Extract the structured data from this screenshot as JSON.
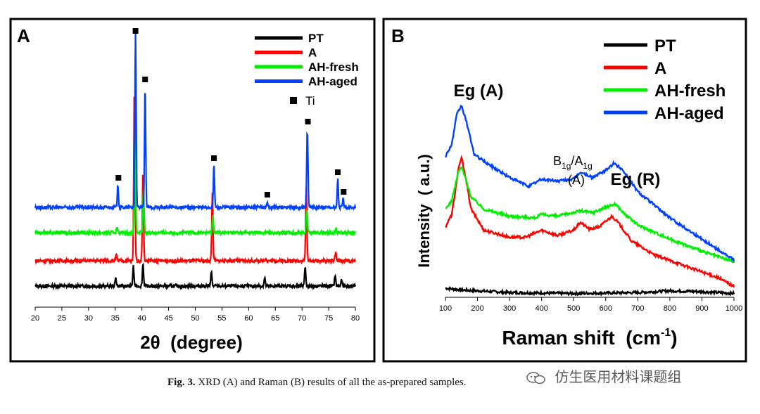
{
  "chart_data": [
    {
      "type": "line",
      "panel_label": "A",
      "xlabel": "2θ  (degree)",
      "ylabel": "",
      "xlim": [
        20,
        80
      ],
      "xticks": [
        20,
        25,
        30,
        35,
        40,
        45,
        50,
        55,
        60,
        65,
        70,
        75,
        80
      ],
      "grid": false,
      "legend_position": "top-right",
      "series": [
        {
          "name": "PT",
          "color": "#000000",
          "baseline": 0,
          "peaks": [
            [
              35.1,
              3
            ],
            [
              38.4,
              7
            ],
            [
              40.2,
              8
            ],
            [
              53.0,
              5
            ],
            [
              63.0,
              3
            ],
            [
              70.6,
              7
            ],
            [
              76.2,
              4
            ],
            [
              77.4,
              2
            ]
          ]
        },
        {
          "name": "A",
          "color": "#ff0000",
          "baseline": 1,
          "peaks": [
            [
              35.2,
              2
            ],
            [
              38.6,
              62
            ],
            [
              40.2,
              32
            ],
            [
              53.2,
              24
            ],
            [
              63.2,
              1
            ],
            [
              70.8,
              26
            ],
            [
              76.3,
              3
            ]
          ]
        },
        {
          "name": "AH-fresh",
          "color": "#00ee00",
          "baseline": 2,
          "peaks": [
            [
              35.3,
              2
            ],
            [
              38.7,
              36
            ],
            [
              40.3,
              15
            ],
            [
              53.3,
              6
            ],
            [
              70.9,
              8
            ],
            [
              76.4,
              2
            ]
          ]
        },
        {
          "name": "AH-aged",
          "color": "#0040ff",
          "baseline": 3,
          "peaks": [
            [
              35.5,
              8
            ],
            [
              38.8,
              63
            ],
            [
              40.6,
              43
            ],
            [
              53.5,
              15
            ],
            [
              63.5,
              2
            ],
            [
              71.0,
              28
            ],
            [
              76.7,
              10
            ],
            [
              77.7,
              3
            ]
          ]
        }
      ],
      "ti_markers": [
        [
          35.6,
          "AH-aged"
        ],
        [
          38.8,
          "top"
        ],
        [
          40.6,
          "AH-aged"
        ],
        [
          53.5,
          "AH-aged"
        ],
        [
          63.5,
          "AH-aged"
        ],
        [
          71.1,
          "AH-aged"
        ],
        [
          76.7,
          "AH-aged"
        ],
        [
          77.8,
          "AH-aged"
        ]
      ],
      "marker_legend": "Ti"
    },
    {
      "type": "line",
      "panel_label": "B",
      "xlabel": "Raman shift  (cm",
      "xlabel_sup": "-1",
      "xlabel_end": ")",
      "ylabel": "Intensity  ( a.u.)",
      "xlim": [
        100,
        1000
      ],
      "xticks": [
        100,
        200,
        300,
        400,
        500,
        600,
        700,
        800,
        900,
        1000
      ],
      "grid": false,
      "legend_position": "top-right",
      "annotations": [
        "Eg (A)",
        "Eg (R)",
        "(A)"
      ],
      "annotation_b": {
        "b": "B",
        "b_sub": "1g",
        "a": "/A",
        "a_sub": "1g"
      },
      "series": [
        {
          "name": "PT",
          "color": "#000000",
          "points": [
            [
              100,
              8
            ],
            [
              150,
              6
            ],
            [
              300,
              3
            ],
            [
              500,
              2
            ],
            [
              700,
              3
            ],
            [
              800,
              5
            ],
            [
              900,
              4
            ],
            [
              1000,
              2
            ]
          ]
        },
        {
          "name": "A",
          "color": "#ff0000",
          "points": [
            [
              100,
              78
            ],
            [
              120,
              92
            ],
            [
              140,
              142
            ],
            [
              150,
              157
            ],
            [
              160,
              140
            ],
            [
              180,
              98
            ],
            [
              220,
              74
            ],
            [
              300,
              66
            ],
            [
              350,
              66
            ],
            [
              400,
              74
            ],
            [
              450,
              68
            ],
            [
              500,
              74
            ],
            [
              520,
              83
            ],
            [
              550,
              75
            ],
            [
              580,
              78
            ],
            [
              600,
              84
            ],
            [
              620,
              90
            ],
            [
              640,
              82
            ],
            [
              680,
              62
            ],
            [
              750,
              46
            ],
            [
              850,
              33
            ],
            [
              950,
              20
            ],
            [
              1000,
              10
            ]
          ]
        },
        {
          "name": "AH-fresh",
          "color": "#00ee00",
          "points": [
            [
              100,
              98
            ],
            [
              120,
              108
            ],
            [
              140,
              140
            ],
            [
              150,
              146
            ],
            [
              160,
              136
            ],
            [
              180,
              112
            ],
            [
              220,
              98
            ],
            [
              300,
              90
            ],
            [
              380,
              88
            ],
            [
              400,
              92
            ],
            [
              450,
              90
            ],
            [
              520,
              96
            ],
            [
              560,
              94
            ],
            [
              600,
              100
            ],
            [
              630,
              104
            ],
            [
              660,
              92
            ],
            [
              700,
              80
            ],
            [
              800,
              64
            ],
            [
              900,
              50
            ],
            [
              1000,
              38
            ]
          ]
        },
        {
          "name": "AH-aged",
          "color": "#0040ff",
          "points": [
            [
              100,
              158
            ],
            [
              120,
              172
            ],
            [
              135,
              205
            ],
            [
              150,
              216
            ],
            [
              165,
              198
            ],
            [
              190,
              160
            ],
            [
              230,
              150
            ],
            [
              300,
              134
            ],
            [
              360,
              124
            ],
            [
              400,
              132
            ],
            [
              450,
              130
            ],
            [
              500,
              132
            ],
            [
              520,
              140
            ],
            [
              560,
              134
            ],
            [
              600,
              142
            ],
            [
              625,
              150
            ],
            [
              650,
              144
            ],
            [
              700,
              118
            ],
            [
              800,
              88
            ],
            [
              900,
              64
            ],
            [
              1000,
              40
            ]
          ]
        }
      ]
    }
  ],
  "caption": {
    "label": "Fig. 3.",
    "text": "XRD (A) and Raman (B) results of all the as-prepared samples."
  },
  "watermark": {
    "text": "仿生医用材料课题组",
    "icon": "wechat-icon"
  }
}
